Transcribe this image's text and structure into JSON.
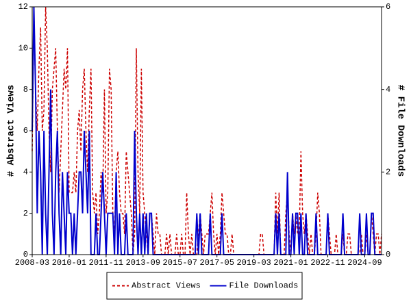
{
  "chart_data": {
    "type": "line",
    "y_label": "# Abstract Views",
    "y2_label": "# File Downloads",
    "categories": [
      "2008-03",
      null,
      null,
      null,
      null,
      null,
      null,
      null,
      null,
      null,
      null,
      null,
      null,
      null,
      null,
      null,
      null,
      null,
      null,
      null,
      null,
      null,
      "2010-01",
      null,
      null,
      null,
      null,
      null,
      null,
      null,
      null,
      null,
      null,
      null,
      null,
      null,
      null,
      null,
      null,
      null,
      null,
      null,
      null,
      null,
      "2011-11",
      null,
      null,
      null,
      null,
      null,
      null,
      null,
      null,
      null,
      null,
      null,
      null,
      null,
      null,
      null,
      null,
      null,
      null,
      null,
      null,
      null,
      "2013-09",
      null,
      null,
      null,
      null,
      null,
      null,
      null,
      null,
      null,
      null,
      null,
      null,
      null,
      null,
      null,
      null,
      null,
      null,
      null,
      null,
      null,
      "2015-07",
      null,
      null,
      null,
      null,
      null,
      null,
      null,
      null,
      null,
      null,
      null,
      null,
      null,
      null,
      null,
      null,
      null,
      null,
      null,
      null,
      null,
      "2017-05",
      null,
      null,
      null,
      null,
      null,
      null,
      null,
      null,
      null,
      null,
      null,
      null,
      null,
      null,
      null,
      null,
      null,
      null,
      null,
      null,
      null,
      "2019-03",
      null,
      null,
      null,
      null,
      null,
      null,
      null,
      null,
      null,
      null,
      null,
      null,
      null,
      null,
      null,
      null,
      null,
      null,
      null,
      null,
      null,
      "2021-01",
      null,
      null,
      null,
      null,
      null,
      null,
      null,
      null,
      null,
      null,
      null,
      null,
      null,
      null,
      null,
      null,
      null,
      null,
      null,
      null,
      null,
      "2022-11",
      null,
      null,
      null,
      null,
      null,
      null,
      null,
      null,
      null,
      null,
      null,
      null,
      null,
      null,
      null,
      null,
      null,
      null,
      null,
      null,
      null,
      "2024-09",
      null,
      null,
      null,
      null,
      null,
      null,
      null,
      null,
      null,
      null
    ],
    "series": [
      {
        "name": "Abstract Views",
        "color": "#cc0000",
        "dashed": true,
        "values": [
          5,
          12,
          8,
          6,
          9,
          11,
          6,
          7,
          12,
          10,
          6,
          4,
          8,
          9,
          10,
          6,
          3,
          5,
          7,
          9,
          8,
          10,
          3,
          3,
          3,
          4,
          3,
          6,
          7,
          5,
          8,
          9,
          6,
          4,
          7,
          9,
          3,
          2,
          3,
          1,
          2,
          4,
          3,
          8,
          2,
          3,
          9,
          8,
          2,
          1,
          4,
          5,
          3,
          2,
          2,
          1,
          5,
          4,
          3,
          2,
          0,
          1,
          10,
          4,
          2,
          9,
          3,
          2,
          1,
          0,
          2,
          2,
          1,
          0,
          2,
          1,
          1,
          0,
          0,
          0,
          1,
          0,
          1,
          0,
          0,
          0,
          1,
          0,
          0,
          1,
          0,
          0,
          3,
          1,
          0,
          1,
          0,
          0,
          0,
          1,
          2,
          1,
          0,
          1,
          1,
          1,
          2,
          3,
          1,
          0,
          1,
          0,
          1,
          3,
          2,
          1,
          1,
          0,
          0,
          1,
          0,
          0,
          0,
          0,
          0,
          0,
          0,
          0,
          0,
          0,
          0,
          0,
          0,
          0,
          0,
          0,
          1,
          1,
          0,
          0,
          0,
          0,
          0,
          0,
          0,
          3,
          1,
          3,
          0,
          0,
          0,
          2,
          3,
          1,
          0,
          2,
          1,
          2,
          1,
          1,
          5,
          2,
          1,
          2,
          1,
          0,
          1,
          0,
          0,
          1,
          3,
          2,
          0,
          0,
          0,
          0,
          2,
          1,
          0,
          0,
          0,
          1,
          0,
          0,
          0,
          1,
          0,
          0,
          1,
          1,
          0,
          0,
          0,
          0,
          0,
          0,
          1,
          0,
          0,
          1,
          0,
          0,
          2,
          1,
          0,
          1,
          1,
          0,
          1
        ]
      },
      {
        "name": "File Downloads",
        "color": "#0000cc",
        "dashed": false,
        "axis": "y2",
        "values": [
          3,
          6,
          4,
          1,
          3,
          2,
          0,
          3,
          1,
          0,
          2,
          4,
          1,
          0,
          2,
          3,
          1,
          0,
          2,
          1,
          0,
          2,
          1,
          1,
          0,
          1,
          0,
          1,
          2,
          2,
          1,
          3,
          2,
          1,
          3,
          0,
          0,
          0,
          1,
          0,
          0,
          1,
          2,
          1,
          0,
          1,
          1,
          1,
          1,
          0,
          2,
          0,
          1,
          0,
          0,
          0,
          1,
          0,
          0,
          0,
          0,
          3,
          1,
          0,
          1,
          0,
          1,
          0,
          1,
          0,
          1,
          1,
          0,
          0,
          0,
          0,
          0,
          0,
          0,
          0,
          0,
          0,
          0,
          0,
          0,
          0,
          0,
          0,
          0,
          0,
          0,
          0,
          0,
          0,
          0,
          0,
          0,
          0,
          1,
          0,
          1,
          0,
          0,
          0,
          0,
          0,
          1,
          0,
          0,
          0,
          0,
          0,
          0,
          1,
          0,
          0,
          0,
          0,
          0,
          0,
          0,
          0,
          0,
          0,
          0,
          0,
          0,
          0,
          0,
          0,
          0,
          0,
          0,
          0,
          0,
          0,
          0,
          0,
          0,
          0,
          0,
          0,
          0,
          0,
          0,
          1,
          0,
          1,
          0,
          0,
          0,
          0,
          2,
          0,
          0,
          1,
          0,
          1,
          1,
          0,
          1,
          0,
          0,
          1,
          0,
          0,
          0,
          0,
          0,
          1,
          0,
          0,
          0,
          0,
          0,
          0,
          1,
          0,
          0,
          0,
          0,
          0,
          0,
          0,
          0,
          1,
          0,
          0,
          0,
          0,
          0,
          0,
          0,
          0,
          0,
          1,
          0,
          0,
          0,
          1,
          0,
          0,
          1,
          1,
          0,
          0,
          0,
          0,
          0
        ]
      }
    ],
    "ylim": [
      0,
      12
    ],
    "yticks": [
      0,
      2,
      4,
      6,
      8,
      10,
      12
    ],
    "y2lim": [
      0,
      6
    ],
    "y2ticks": [
      0,
      2,
      4,
      6
    ],
    "legend": "bottom"
  }
}
